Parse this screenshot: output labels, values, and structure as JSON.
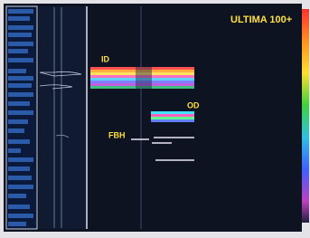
{
  "header": {
    "title": "ULTIMA 100+"
  },
  "labels": {
    "id": "ID",
    "od": "OD",
    "fbh": "FBH"
  }
}
